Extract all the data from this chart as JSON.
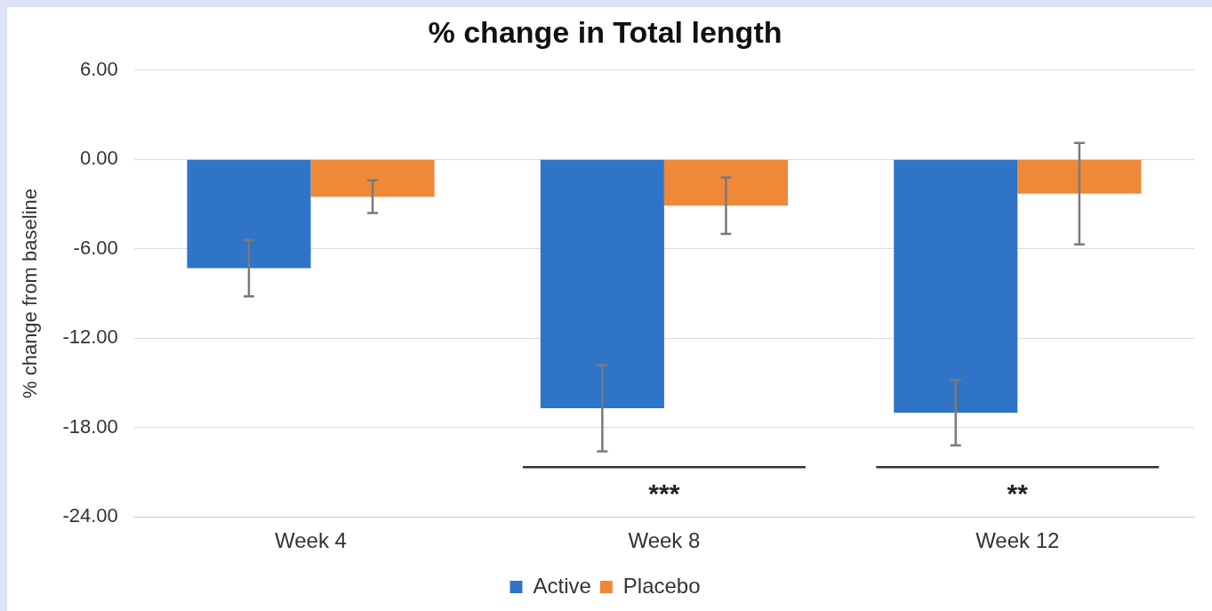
{
  "chart_data": {
    "type": "bar",
    "title": "% change in Total length",
    "ylabel": "% change from baseline",
    "categories": [
      "Week 4",
      "Week 8",
      "Week 12"
    ],
    "series": [
      {
        "name": "Active",
        "color": "#2f74c6",
        "values": [
          -7.3,
          -16.7,
          -17.0
        ],
        "errors": [
          1.9,
          2.9,
          2.2
        ]
      },
      {
        "name": "Placebo",
        "color": "#f0883a",
        "values": [
          -2.5,
          -3.1,
          -2.3
        ],
        "errors": [
          1.1,
          1.9,
          3.4
        ]
      }
    ],
    "ylim": [
      -24,
      6
    ],
    "yticks": [
      {
        "value": 6,
        "label": "6.00"
      },
      {
        "value": 0,
        "label": "0.00"
      },
      {
        "value": -6,
        "label": "-6.00"
      },
      {
        "value": -12,
        "label": "-12.00"
      },
      {
        "value": -18,
        "label": "-18.00"
      },
      {
        "value": -24,
        "label": "-24.00"
      }
    ],
    "annotations": [
      "***",
      "**"
    ],
    "grid": "y",
    "legend": "bottom"
  }
}
